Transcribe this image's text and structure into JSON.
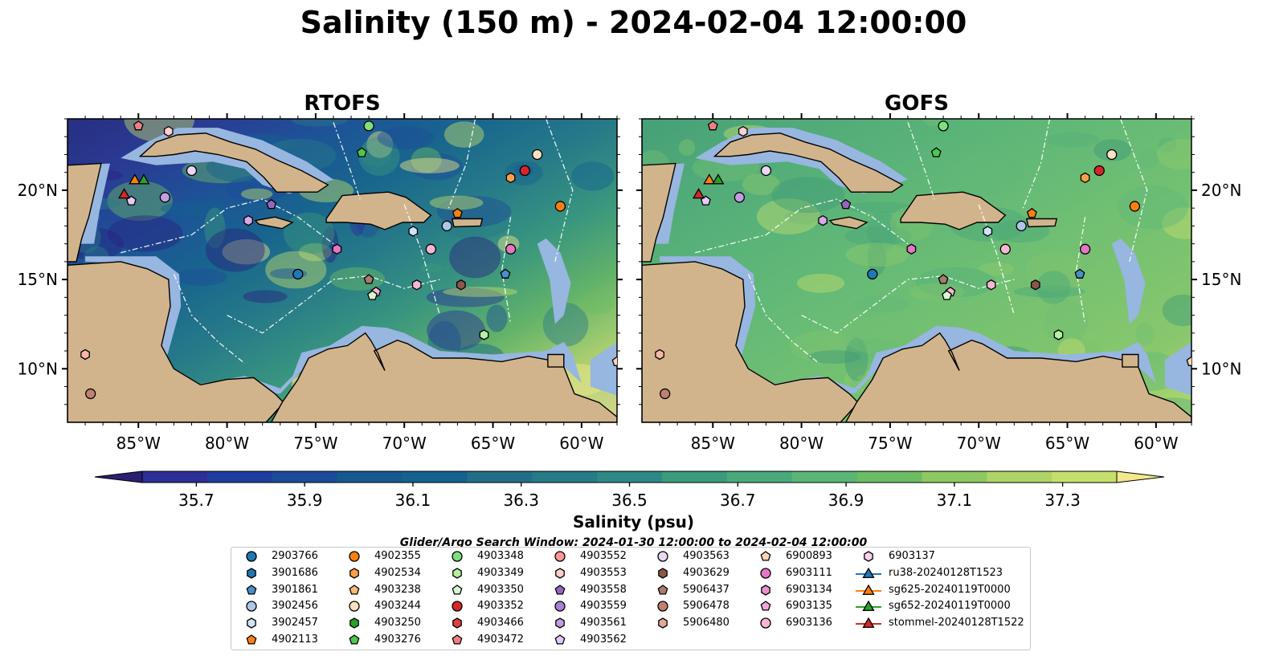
{
  "title": "Salinity (150 m) - 2024-02-04 12:00:00",
  "panels": [
    {
      "title": "RTOFS",
      "palette": [
        "#27227f",
        "#2b2f96",
        "#1c4b9a",
        "#15628e",
        "#277a88",
        "#3c9a7d",
        "#6cbc64",
        "#c5df6c",
        "#f3e88c"
      ]
    },
    {
      "title": "GOFS",
      "palette": [
        "#3e9a78",
        "#4aa67a",
        "#55b079",
        "#61b877",
        "#70bf73",
        "#7ec46e",
        "#8fc96c",
        "#c3de6e"
      ]
    }
  ],
  "map": {
    "lon_range": [
      -89,
      -58
    ],
    "lat_range": [
      7,
      24
    ],
    "lon_ticks": [
      "85°W",
      "80°W",
      "75°W",
      "70°W",
      "65°W",
      "60°W"
    ],
    "lat_ticks": [
      "10°N",
      "15°N",
      "20°N"
    ],
    "colors": {
      "land": "#d2b48c",
      "shallow": "#97b6e0",
      "deep_pacific": "#27227f"
    }
  },
  "colorbar": {
    "min": 35.6,
    "max": 37.4,
    "ticks": [
      "35.7",
      "35.9",
      "36.1",
      "36.3",
      "36.5",
      "36.7",
      "36.9",
      "37.1",
      "37.3"
    ],
    "label": "Salinity (psu)",
    "colors": [
      "#2a1f72",
      "#2b2f96",
      "#1f3d9e",
      "#1c4b9a",
      "#17588f",
      "#15628e",
      "#236d8a",
      "#277a88",
      "#2e8885",
      "#3c9a7d",
      "#4aa97b",
      "#5bb576",
      "#6cbc64",
      "#8cc962",
      "#aed467",
      "#c5df6c",
      "#f3e88c"
    ]
  },
  "search_window": "Glider/Argo Search Window: 2024-01-30 12:00:00 to 2024-02-04 12:00:00",
  "markers": [
    {
      "lon": -76.0,
      "lat": 15.3,
      "color": "#1f77b4",
      "shape": "circle",
      "id": "2903766"
    },
    {
      "lon": -63.2,
      "lat": 21.1,
      "color": "#d62728",
      "shape": "circle",
      "id": "4903352"
    },
    {
      "lon": -64.0,
      "lat": 20.7,
      "color": "#ff9f4a",
      "shape": "hexagon",
      "id": "4902534"
    },
    {
      "lon": -62.5,
      "lat": 22.0,
      "color": "#ffe0c0",
      "shape": "circle",
      "id": "4903244"
    },
    {
      "lon": -61.2,
      "lat": 19.1,
      "color": "#ff7f0e",
      "shape": "circle",
      "id": "4902355"
    },
    {
      "lon": -67.0,
      "lat": 18.7,
      "color": "#ff7f0e",
      "shape": "pentagon",
      "id": "4902113"
    },
    {
      "lon": -67.6,
      "lat": 18.0,
      "color": "#aec7e8",
      "shape": "circle",
      "id": "3902456"
    },
    {
      "lon": -69.5,
      "lat": 17.7,
      "color": "#cfe3f7",
      "shape": "hexagon",
      "id": "3902457"
    },
    {
      "lon": -64.0,
      "lat": 16.7,
      "color": "#e377c2",
      "shape": "circle",
      "id": "6903111"
    },
    {
      "lon": -68.5,
      "lat": 16.7,
      "color": "#f7b6d2",
      "shape": "circle",
      "id": "6903136"
    },
    {
      "lon": -73.8,
      "lat": 16.7,
      "color": "#e377c2",
      "shape": "hexagon",
      "id": "6903134"
    },
    {
      "lon": -64.3,
      "lat": 15.3,
      "color": "#4a90c8",
      "shape": "pentagon",
      "id": "3901861"
    },
    {
      "lon": -66.8,
      "lat": 14.7,
      "color": "#8c564b",
      "shape": "hexagon",
      "id": "4903629"
    },
    {
      "lon": -69.3,
      "lat": 14.7,
      "color": "#f7b6d2",
      "shape": "hexagon",
      "id": "6903137"
    },
    {
      "lon": -71.6,
      "lat": 14.3,
      "color": "#f7b6d2",
      "shape": "pentagon",
      "id": "6903135"
    },
    {
      "lon": -71.8,
      "lat": 14.1,
      "color": "#d8f7d0",
      "shape": "pentagon",
      "id": "4903350"
    },
    {
      "lon": -72.0,
      "lat": 15.0,
      "color": "#a67c6d",
      "shape": "pentagon",
      "id": "5906437"
    },
    {
      "lon": -65.5,
      "lat": 11.9,
      "color": "#b6f0a0",
      "shape": "hexagon",
      "id": "4903349"
    },
    {
      "lon": -77.5,
      "lat": 19.2,
      "color": "#9467bd",
      "shape": "pentagon",
      "id": "4903558"
    },
    {
      "lon": -78.8,
      "lat": 18.3,
      "color": "#d8a8e8",
      "shape": "hexagon",
      "id": "4903561"
    },
    {
      "lon": -83.5,
      "lat": 19.6,
      "color": "#c19ee0",
      "shape": "circle",
      "id": "4903559"
    },
    {
      "lon": -85.4,
      "lat": 19.4,
      "color": "#e7c8f7",
      "shape": "pentagon",
      "id": "4903562"
    },
    {
      "lon": -82.0,
      "lat": 21.1,
      "color": "#ead7f5",
      "shape": "circle",
      "id": "4903563"
    },
    {
      "lon": -83.3,
      "lat": 23.3,
      "color": "#ffcfcf",
      "shape": "hexagon",
      "id": "4903553"
    },
    {
      "lon": -85.0,
      "lat": 23.6,
      "color": "#f08080",
      "shape": "pentagon",
      "id": "4903472"
    },
    {
      "lon": -72.4,
      "lat": 22.1,
      "color": "#4cc84c",
      "shape": "pentagon",
      "id": "4903276"
    },
    {
      "lon": -72.0,
      "lat": 23.6,
      "color": "#7ddf7d",
      "shape": "circle",
      "id": "4903348"
    },
    {
      "lon": -88.0,
      "lat": 10.8,
      "color": "#f5b8a8",
      "shape": "hexagon",
      "id": "5906480"
    },
    {
      "lon": -87.7,
      "lat": 8.6,
      "color": "#c08070",
      "shape": "circle",
      "id": "5906478"
    },
    {
      "lon": -58.0,
      "lat": 10.4,
      "color": "#fcd5b5",
      "shape": "pentagon",
      "id": "6900893"
    },
    {
      "lon": -85.2,
      "lat": 20.6,
      "color": "#ff7f0e",
      "shape": "triangle",
      "id": "sg625-20240119T0000"
    },
    {
      "lon": -84.7,
      "lat": 20.6,
      "color": "#2ca02c",
      "shape": "triangle",
      "id": "sg652-20240119T0000"
    },
    {
      "lon": -85.8,
      "lat": 19.8,
      "color": "#d62728",
      "shape": "triangle",
      "id": "stommel-20240128T1522"
    }
  ],
  "legend": [
    [
      {
        "label": "2903766",
        "color": "#1f77b4",
        "shape": "circle"
      },
      {
        "label": "3901686",
        "color": "#1f77b4",
        "shape": "hexagon"
      },
      {
        "label": "3901861",
        "color": "#4a90c8",
        "shape": "pentagon"
      },
      {
        "label": "3902456",
        "color": "#aec7e8",
        "shape": "circle"
      },
      {
        "label": "3902457",
        "color": "#cfe3f7",
        "shape": "hexagon"
      },
      {
        "label": "4902113",
        "color": "#ff7f0e",
        "shape": "pentagon"
      }
    ],
    [
      {
        "label": "4902355",
        "color": "#ff7f0e",
        "shape": "circle"
      },
      {
        "label": "4902534",
        "color": "#ff9f4a",
        "shape": "hexagon"
      },
      {
        "label": "4903238",
        "color": "#ffbb78",
        "shape": "pentagon"
      },
      {
        "label": "4903244",
        "color": "#ffe0c0",
        "shape": "circle"
      },
      {
        "label": "4903250",
        "color": "#2ca02c",
        "shape": "hexagon"
      },
      {
        "label": "4903276",
        "color": "#4cc84c",
        "shape": "pentagon"
      }
    ],
    [
      {
        "label": "4903348",
        "color": "#7ddf7d",
        "shape": "circle"
      },
      {
        "label": "4903349",
        "color": "#b6f0a0",
        "shape": "hexagon"
      },
      {
        "label": "4903350",
        "color": "#d8f7d0",
        "shape": "pentagon"
      },
      {
        "label": "4903352",
        "color": "#d62728",
        "shape": "circle"
      },
      {
        "label": "4903466",
        "color": "#e04040",
        "shape": "hexagon"
      },
      {
        "label": "4903472",
        "color": "#f08080",
        "shape": "pentagon"
      }
    ],
    [
      {
        "label": "4903552",
        "color": "#ff9896",
        "shape": "circle"
      },
      {
        "label": "4903553",
        "color": "#ffcfcf",
        "shape": "hexagon"
      },
      {
        "label": "4903558",
        "color": "#9467bd",
        "shape": "pentagon"
      },
      {
        "label": "4903559",
        "color": "#a783d0",
        "shape": "circle"
      },
      {
        "label": "4903561",
        "color": "#c19ee0",
        "shape": "hexagon"
      },
      {
        "label": "4903562",
        "color": "#e0c8f7",
        "shape": "pentagon"
      }
    ],
    [
      {
        "label": "4903563",
        "color": "#ead7f5",
        "shape": "circle"
      },
      {
        "label": "4903629",
        "color": "#8c564b",
        "shape": "hexagon"
      },
      {
        "label": "5906437",
        "color": "#a67c6d",
        "shape": "pentagon"
      },
      {
        "label": "5906478",
        "color": "#c08070",
        "shape": "circle"
      },
      {
        "label": "5906480",
        "color": "#e4a898",
        "shape": "hexagon"
      }
    ],
    [
      {
        "label": "6900893",
        "color": "#fcd5b5",
        "shape": "pentagon"
      },
      {
        "label": "6903111",
        "color": "#e377c2",
        "shape": "circle"
      },
      {
        "label": "6903134",
        "color": "#e890cf",
        "shape": "hexagon"
      },
      {
        "label": "6903135",
        "color": "#f0a5dc",
        "shape": "pentagon"
      },
      {
        "label": "6903136",
        "color": "#f7b6d2",
        "shape": "circle"
      }
    ],
    [
      {
        "label": "6903137",
        "color": "#fbd0ea",
        "shape": "hexagon"
      },
      {
        "label": "ru38-20240128T1523",
        "color": "#1f77b4",
        "shape": "triangle"
      },
      {
        "label": "sg625-20240119T0000",
        "color": "#ff7f0e",
        "shape": "triangle"
      },
      {
        "label": "sg652-20240119T0000",
        "color": "#2ca02c",
        "shape": "triangle"
      },
      {
        "label": "stommel-20240128T1522",
        "color": "#d62728",
        "shape": "triangle"
      }
    ]
  ]
}
